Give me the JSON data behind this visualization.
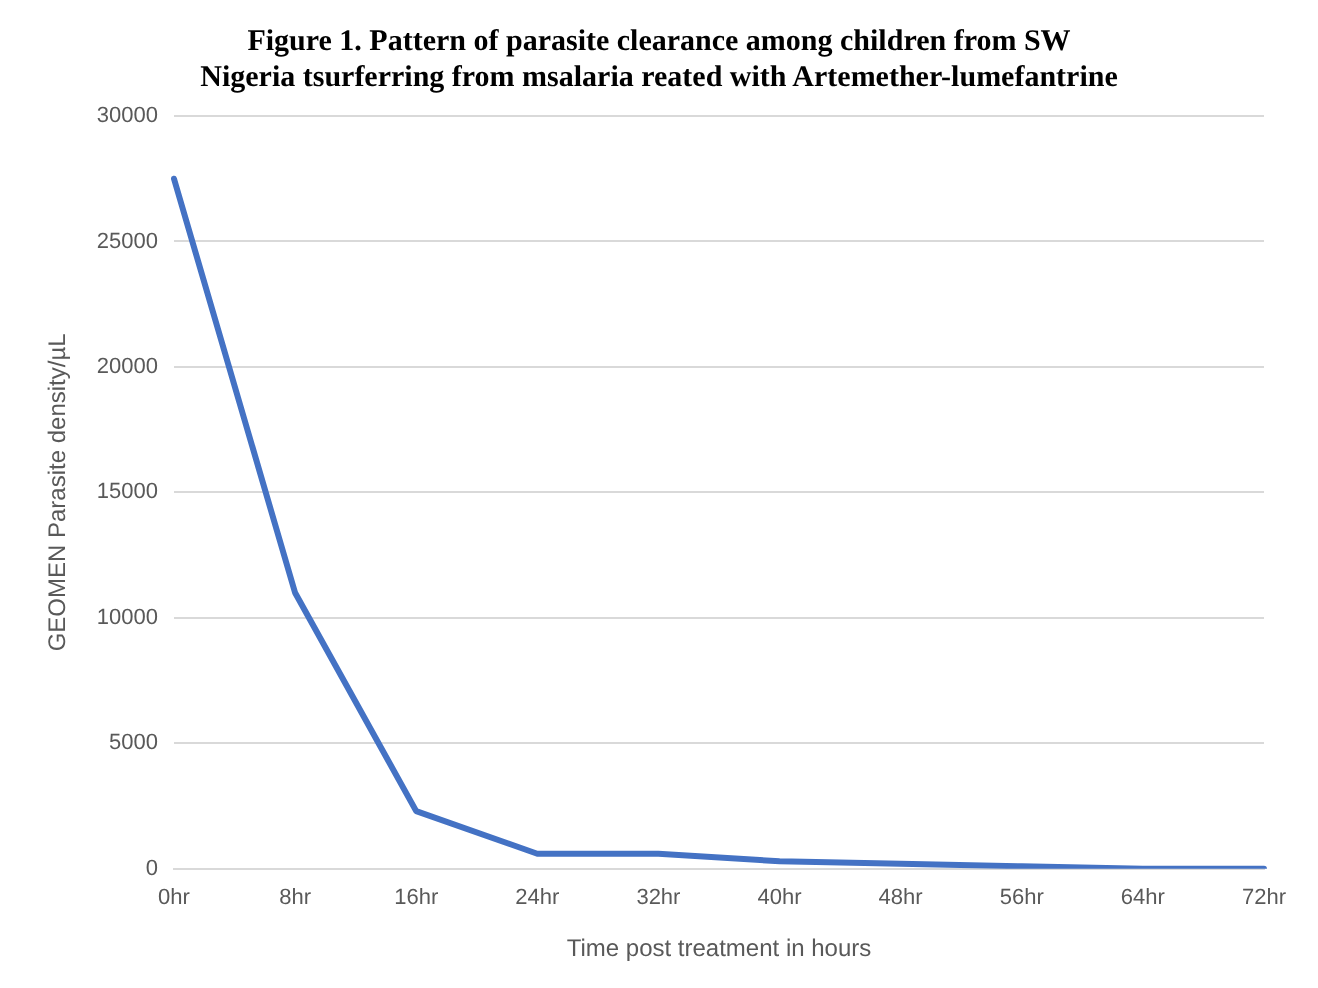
{
  "chart_data": {
    "type": "line",
    "title": "Figure 1. Pattern of parasite clearance among children from SW\nNigeria tsurferring from msalaria reated with Artemether-lumefantrine",
    "xlabel": "Time post treatment in hours",
    "ylabel": "GEOMEN Parasite density/µL",
    "categories": [
      "0hr",
      "8hr",
      "16hr",
      "24hr",
      "32hr",
      "40hr",
      "48hr",
      "56hr",
      "64hr",
      "72hr"
    ],
    "series": [
      {
        "color": "#4472c4",
        "values": [
          27500,
          11000,
          2300,
          600,
          600,
          300,
          200,
          100,
          0,
          0
        ]
      }
    ],
    "ylim": [
      0,
      30000
    ],
    "yticks": [
      0,
      5000,
      10000,
      15000,
      20000,
      25000,
      30000
    ],
    "grid": "y",
    "legend": false,
    "marker": "none",
    "line_style": "solid"
  }
}
